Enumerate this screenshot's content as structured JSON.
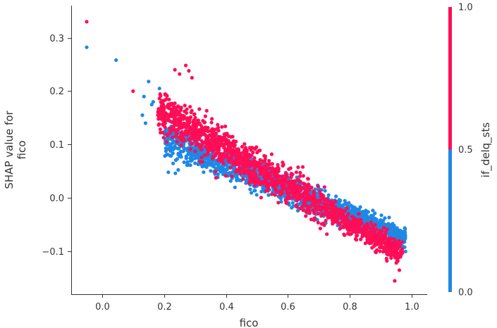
{
  "chart_data": {
    "type": "scatter",
    "xlabel": "fico",
    "ylabel_lines": [
      "SHAP value for",
      "fico"
    ],
    "xlim": [
      -0.1,
      1.05
    ],
    "ylim": [
      -0.18,
      0.36
    ],
    "x_ticks": [
      0.0,
      0.2,
      0.4,
      0.6,
      0.8,
      1.0
    ],
    "x_tick_labels": [
      "0.0",
      "0.2",
      "0.4",
      "0.6",
      "0.8",
      "1.0"
    ],
    "y_ticks": [
      -0.1,
      0.0,
      0.1,
      0.2,
      0.3
    ],
    "y_tick_labels": [
      "−0.1",
      "0.0",
      "0.1",
      "0.2",
      "0.3"
    ],
    "color_feature": "if_delq_sts",
    "colorbar": {
      "label": "if_delq_sts",
      "ticks": [
        0.0,
        0.5,
        1.0
      ],
      "tick_labels": [
        "0.0",
        "0.5",
        "1.0"
      ],
      "low_color": "#1e88e5",
      "high_color": "#ff0d57"
    },
    "colors": {
      "0": "#1e88e5",
      "1": "#ff0d57"
    },
    "outlier_points": [
      {
        "x": -0.05,
        "y": 0.33,
        "c": 1
      },
      {
        "x": -0.05,
        "y": 0.282,
        "c": 0
      },
      {
        "x": 0.045,
        "y": 0.258,
        "c": 0
      },
      {
        "x": 0.1,
        "y": 0.2,
        "c": 1
      },
      {
        "x": 0.15,
        "y": 0.218,
        "c": 0
      },
      {
        "x": 0.135,
        "y": 0.19,
        "c": 0
      },
      {
        "x": 0.13,
        "y": 0.155,
        "c": 0
      },
      {
        "x": 0.14,
        "y": 0.14,
        "c": 0
      },
      {
        "x": 0.16,
        "y": 0.175,
        "c": 0
      },
      {
        "x": 0.165,
        "y": 0.18,
        "c": 0
      },
      {
        "x": 0.185,
        "y": 0.205,
        "c": 0
      },
      {
        "x": 0.235,
        "y": 0.24,
        "c": 1
      },
      {
        "x": 0.25,
        "y": 0.232,
        "c": 1
      },
      {
        "x": 0.27,
        "y": 0.248,
        "c": 1
      },
      {
        "x": 0.28,
        "y": 0.238,
        "c": 1
      },
      {
        "x": 0.29,
        "y": 0.225,
        "c": 1
      },
      {
        "x": 0.96,
        "y": -0.135,
        "c": 1
      },
      {
        "x": 0.945,
        "y": -0.155,
        "c": 1
      },
      {
        "x": 0.955,
        "y": -0.118,
        "c": 1
      },
      {
        "x": 0.98,
        "y": -0.1,
        "c": 0
      },
      {
        "x": 0.97,
        "y": -0.09,
        "c": 0
      }
    ],
    "point_clusters": [
      {
        "c": 0,
        "count": 1700,
        "x_range": [
          0.2,
          0.98
        ],
        "y_start": 0.11,
        "y_end": -0.075,
        "y_spread": 0.028,
        "skew": 0.9
      },
      {
        "c": 1,
        "count": 1500,
        "x_range": [
          0.18,
          0.97
        ],
        "y_start": 0.165,
        "y_end": -0.105,
        "y_spread": 0.035,
        "skew": 1.0
      }
    ]
  }
}
